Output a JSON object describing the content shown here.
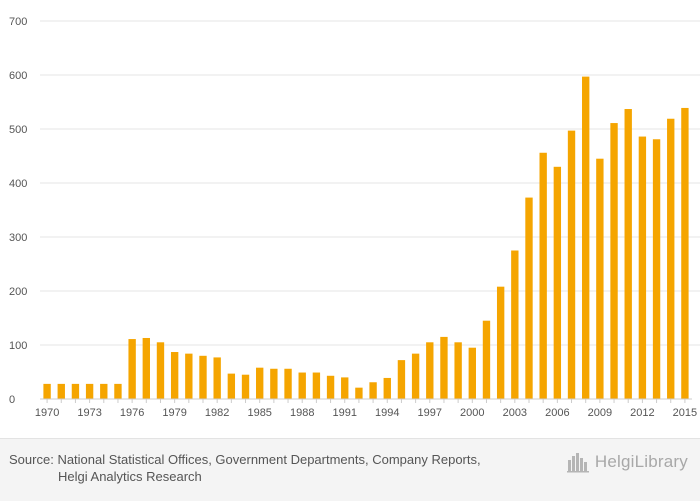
{
  "chart_data": {
    "type": "bar",
    "title": "",
    "xlabel": "",
    "ylabel": "",
    "ylim": [
      0,
      700
    ],
    "yticks": [
      0,
      100,
      200,
      300,
      400,
      500,
      600,
      700
    ],
    "categories": [
      "1970",
      "1971",
      "1972",
      "1973",
      "1974",
      "1975",
      "1976",
      "1977",
      "1978",
      "1979",
      "1980",
      "1981",
      "1982",
      "1983",
      "1984",
      "1985",
      "1986",
      "1987",
      "1988",
      "1989",
      "1990",
      "1991",
      "1992",
      "1993",
      "1994",
      "1995",
      "1996",
      "1997",
      "1998",
      "1999",
      "2000",
      "2001",
      "2002",
      "2003",
      "2004",
      "2005",
      "2006",
      "2007",
      "2008",
      "2009",
      "2010",
      "2011",
      "2012",
      "2013",
      "2014",
      "2015"
    ],
    "xtick_labels": [
      "1970",
      "1973",
      "1976",
      "1979",
      "1982",
      "1985",
      "1988",
      "1991",
      "1994",
      "1997",
      "2000",
      "2003",
      "2006",
      "2009",
      "2012",
      "2015"
    ],
    "values": [
      28,
      28,
      28,
      28,
      28,
      28,
      111,
      113,
      105,
      87,
      84,
      80,
      77,
      47,
      45,
      58,
      56,
      56,
      49,
      49,
      43,
      40,
      21,
      31,
      39,
      72,
      84,
      105,
      115,
      105,
      95,
      145,
      208,
      275,
      373,
      456,
      430,
      497,
      597,
      445,
      511,
      537,
      486,
      481,
      519,
      539
    ],
    "bar_color": "#f5a500",
    "grid": true
  },
  "footer": {
    "source_prefix": "Source:",
    "source_line1": "National Statistical Offices, Government Departments, Company Reports,",
    "source_line2": "Helgi Analytics Research",
    "logo_text": "HelgiLibrary"
  }
}
